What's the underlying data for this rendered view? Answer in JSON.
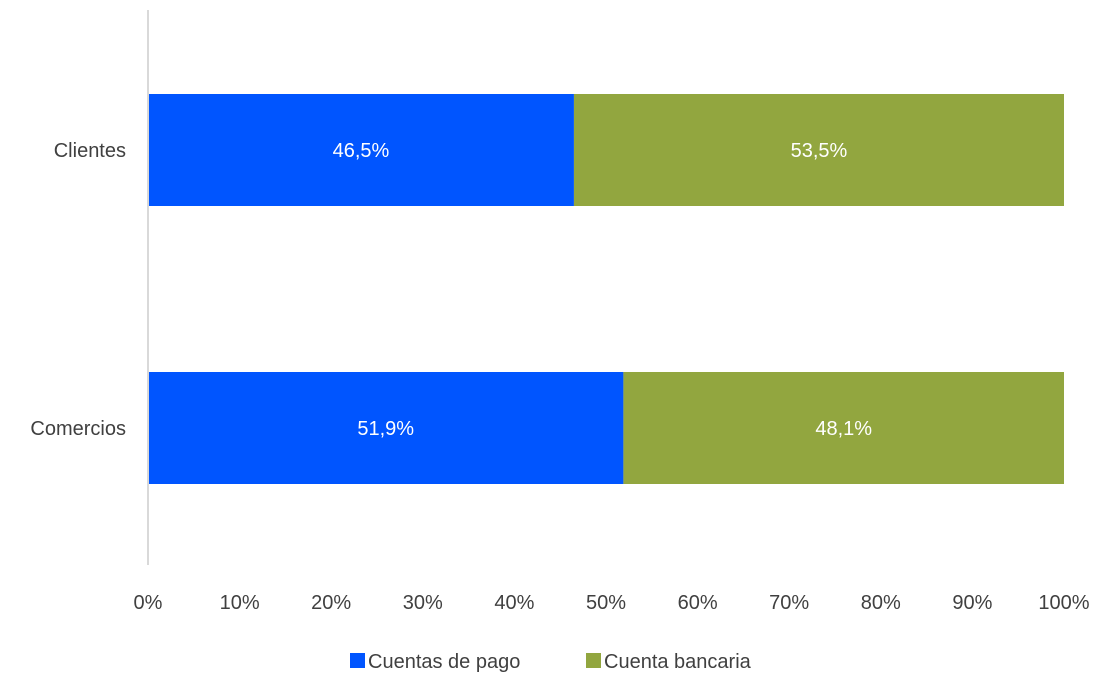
{
  "chart_data": {
    "type": "bar",
    "orientation": "horizontal",
    "stacked": true,
    "categories": [
      "Clientes",
      "Comercios"
    ],
    "series": [
      {
        "name": "Cuentas de pago",
        "color": "#0055FF",
        "values": [
          46.5,
          51.9
        ],
        "labels": [
          "46,5%",
          "51,9%"
        ]
      },
      {
        "name": "Cuenta bancaria",
        "color": "#92A63F",
        "values": [
          53.5,
          48.1
        ],
        "labels": [
          "53,5%",
          "48,1%"
        ]
      }
    ],
    "xlim": [
      0,
      100
    ],
    "xticks": [
      "0%",
      "10%",
      "20%",
      "30%",
      "40%",
      "50%",
      "60%",
      "70%",
      "80%",
      "90%",
      "100%"
    ],
    "grid": false,
    "legend_position": "bottom",
    "axis_color": "#D9D9D9"
  }
}
